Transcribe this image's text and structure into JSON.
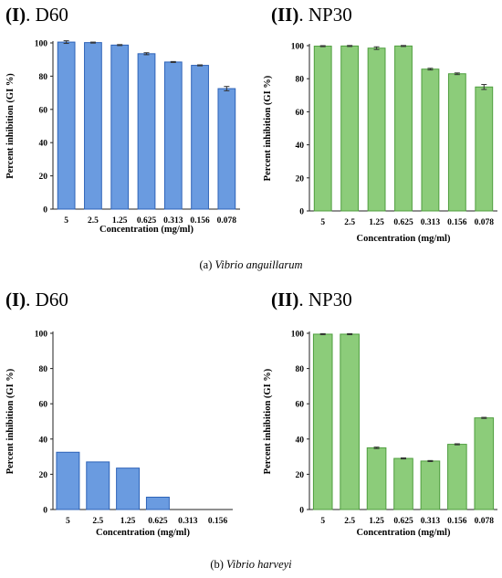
{
  "figure": {
    "caption_a_prefix": "(a)",
    "caption_a_organism": "Vibrio anguillarum",
    "caption_b_prefix": "(b)",
    "caption_b_organism": "Vibrio harveyi"
  },
  "panels": [
    {
      "roman": "(I)",
      "name": ". D60"
    },
    {
      "roman": "(II)",
      "name": ". NP30"
    },
    {
      "roman": "(I)",
      "name": ". D60"
    },
    {
      "roman": "(II)",
      "name": ". NP30"
    }
  ],
  "chart_data": [
    {
      "type": "bar",
      "title": "(I). D60",
      "xlabel": "Concentration (mg/ml)",
      "ylabel": "Percent inhibition (GI %)",
      "categories": [
        "5",
        "2.5",
        "1.25",
        "0.625",
        "0.313",
        "0.156",
        "0.078"
      ],
      "values": [
        100.5,
        100.2,
        98.7,
        93.5,
        88.5,
        86.5,
        72.5
      ],
      "errors": [
        0.8,
        0.3,
        0.3,
        0.6,
        0.3,
        0.3,
        1.3
      ],
      "ylim": [
        0,
        100
      ],
      "yticks": [
        0,
        20,
        40,
        60,
        80,
        100
      ],
      "color": "#6a9be0",
      "edge": "#2e63b8",
      "grid": false
    },
    {
      "type": "bar",
      "title": "(II). NP30",
      "xlabel": "Concentration (mg/ml)",
      "ylabel": "Percent inhibition (GI %)",
      "categories": [
        "5",
        "2.5",
        "1.25",
        "0.625",
        "0.313",
        "0.156",
        "0.078"
      ],
      "values": [
        99.7,
        99.8,
        98.5,
        99.8,
        85.8,
        83.0,
        75.0
      ],
      "errors": [
        0.3,
        0.3,
        0.8,
        0.3,
        0.5,
        0.5,
        1.5
      ],
      "ylim": [
        0,
        100
      ],
      "yticks": [
        0,
        20,
        40,
        60,
        80,
        100
      ],
      "color": "#8ccc7a",
      "edge": "#4f9e3f",
      "grid": false
    },
    {
      "type": "bar",
      "title": "(I). D60",
      "xlabel": "Concentration (mg/ml)",
      "ylabel": "Percent inhibition (GI %)",
      "categories": [
        "5",
        "2.5",
        "1.25",
        "0.625",
        "0.313",
        "0.156"
      ],
      "values": [
        32.5,
        27.0,
        23.5,
        7.0,
        0,
        0
      ],
      "ylim": [
        0,
        100
      ],
      "yticks": [
        0,
        20,
        40,
        60,
        80,
        100
      ],
      "color": "#6a9be0",
      "edge": "#2e63b8",
      "grid": false
    },
    {
      "type": "bar",
      "title": "(II). NP30",
      "xlabel": "Concentration (mg/ml)",
      "ylabel": "Percent inhibition (GI %)",
      "categories": [
        "5",
        "2.5",
        "1.25",
        "0.625",
        "0.313",
        "0.156",
        "0.078"
      ],
      "values": [
        99.5,
        99.5,
        35.0,
        29.0,
        27.5,
        37.0,
        52.0
      ],
      "errors": [
        0.3,
        0.3,
        0.4,
        0.3,
        0.3,
        0.3,
        0.3
      ],
      "ylim": [
        0,
        100
      ],
      "yticks": [
        0,
        20,
        40,
        60,
        80,
        100
      ],
      "color": "#8ccc7a",
      "edge": "#4f9e3f",
      "grid": false
    }
  ]
}
